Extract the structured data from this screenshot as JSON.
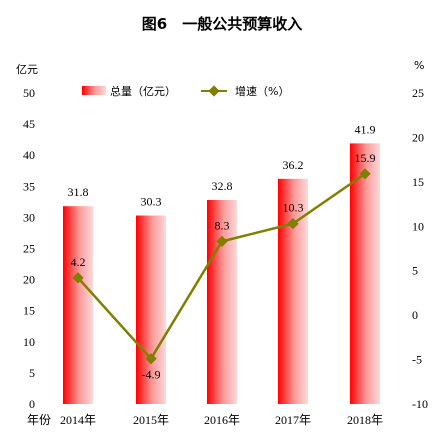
{
  "title": "图6　一般公共预算收入",
  "chart_data": {
    "type": "bar+line",
    "categories": [
      "2014年",
      "2015年",
      "2016年",
      "2017年",
      "2018年"
    ],
    "x_axis_label": "年份",
    "series": [
      {
        "name": "总量（亿元）",
        "type": "bar",
        "axis": "left",
        "values": [
          31.8,
          30.3,
          32.8,
          36.2,
          41.9
        ],
        "labels": [
          "31.8",
          "30.3",
          "32.8",
          "36.2",
          "41.9"
        ]
      },
      {
        "name": "增速（%）",
        "type": "line",
        "axis": "right",
        "values": [
          4.2,
          -4.9,
          8.3,
          10.3,
          15.9
        ],
        "labels": [
          "4.2",
          "-4.9",
          "8.3",
          "10.3",
          "15.9"
        ]
      }
    ],
    "left_axis": {
      "unit": "亿元",
      "ylim": [
        0,
        50
      ],
      "ticks": [
        0,
        5,
        10,
        15,
        20,
        25,
        30,
        35,
        40,
        45,
        50
      ]
    },
    "right_axis": {
      "unit": "%",
      "ylim": [
        -10,
        25
      ],
      "ticks": [
        -10,
        -5,
        0,
        5,
        10,
        15,
        20,
        25
      ]
    },
    "grid": false,
    "legend_position": "top"
  },
  "colors": {
    "bar_dark": "#ff0000",
    "bar_light": "#ffd9d9",
    "line": "#7f7f00"
  }
}
